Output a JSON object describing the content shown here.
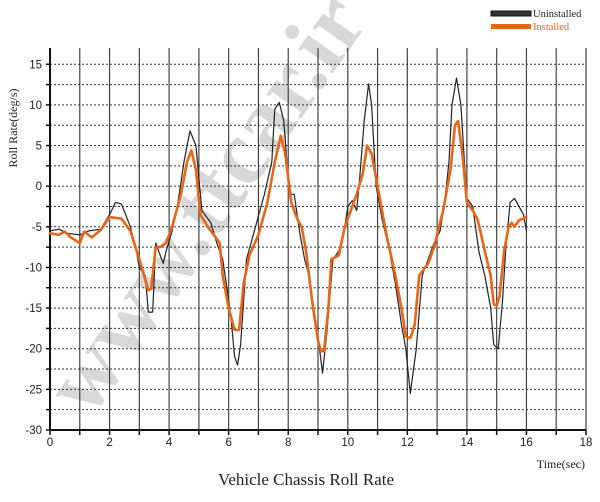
{
  "chart_data": {
    "type": "line",
    "title": "Vehicle Chassis Roll Rate",
    "xlabel": "Time(sec)",
    "ylabel": "Roll Rate(deg/s)",
    "xlim": [
      0,
      18
    ],
    "ylim": [
      -30,
      17
    ],
    "xticks": [
      0,
      2,
      4,
      6,
      8,
      10,
      12,
      14,
      16,
      18
    ],
    "yticks": [
      15,
      10,
      5,
      0,
      -5,
      -10,
      -15,
      -20,
      -25,
      -30
    ],
    "grid": {
      "vertical": "solid every 1 sec",
      "horizontal": "dotted every 2.5"
    },
    "legend_position": "top-right",
    "series": [
      {
        "name": "Uninstalled",
        "color": "#222222",
        "x": [
          0,
          0.3,
          0.6,
          1.0,
          1.3,
          1.7,
          2.0,
          2.2,
          2.4,
          2.7,
          2.9,
          3.0,
          3.2,
          3.3,
          3.45,
          3.55,
          3.7,
          3.8,
          3.9,
          4.1,
          4.3,
          4.5,
          4.7,
          4.9,
          5.1,
          5.4,
          5.6,
          5.8,
          6.0,
          6.1,
          6.2,
          6.3,
          6.4,
          6.6,
          6.9,
          7.2,
          7.45,
          7.55,
          7.7,
          7.85,
          8.0,
          8.1,
          8.2,
          8.4,
          8.55,
          8.7,
          8.9,
          9.05,
          9.15,
          9.3,
          9.5,
          9.7,
          9.9,
          10.0,
          10.15,
          10.3,
          10.4,
          10.55,
          10.7,
          10.8,
          10.95,
          11.15,
          11.4,
          11.6,
          11.8,
          11.95,
          12.1,
          12.3,
          12.5,
          12.7,
          12.9,
          13.1,
          13.25,
          13.4,
          13.5,
          13.65,
          13.8,
          13.9,
          14.0,
          14.2,
          14.4,
          14.6,
          14.8,
          14.9,
          15.05,
          15.2,
          15.3,
          15.45,
          15.6,
          15.9,
          16.0
        ],
        "y": [
          -5.5,
          -5.3,
          -5.8,
          -6.0,
          -5.5,
          -5.3,
          -3.5,
          -2,
          -2.2,
          -5,
          -8,
          -10,
          -11,
          -15.5,
          -15.5,
          -7,
          -8.5,
          -9.5,
          -8,
          -5.5,
          -2,
          3,
          6.8,
          5,
          -3,
          -4.5,
          -7,
          -9,
          -14,
          -17,
          -21,
          -22,
          -19.5,
          -9,
          -5,
          -1,
          3,
          9.5,
          10.3,
          8,
          1,
          -1,
          -1,
          -6,
          -9,
          -11,
          -17,
          -20,
          -23,
          -18,
          -9,
          -8,
          -5,
          -2.5,
          -1.8,
          -3,
          1,
          8,
          12.6,
          10,
          0,
          -4,
          -8,
          -12,
          -17,
          -20,
          -25.5,
          -20,
          -11,
          -9,
          -7,
          -5.5,
          -2,
          3,
          10,
          13.3,
          10,
          4,
          -1.5,
          -2.5,
          -8,
          -11,
          -15,
          -19.5,
          -20,
          -14,
          -8,
          -2,
          -1.5,
          -3.5,
          -5.5
        ]
      },
      {
        "name": "Installed",
        "color": "#e8651a",
        "x": [
          0,
          0.3,
          0.5,
          0.7,
          1.0,
          1.15,
          1.4,
          1.7,
          2.0,
          2.4,
          2.7,
          3.0,
          3.2,
          3.3,
          3.4,
          3.55,
          3.7,
          3.9,
          4.1,
          4.4,
          4.6,
          4.75,
          4.9,
          5.05,
          5.3,
          5.5,
          5.7,
          5.8,
          6.0,
          6.2,
          6.35,
          6.5,
          6.7,
          7.0,
          7.3,
          7.55,
          7.75,
          7.9,
          8.1,
          8.3,
          8.45,
          8.6,
          8.8,
          9.0,
          9.1,
          9.2,
          9.35,
          9.45,
          9.7,
          9.9,
          10.1,
          10.3,
          10.5,
          10.65,
          10.8,
          10.95,
          11.1,
          11.3,
          11.6,
          11.8,
          11.95,
          12.1,
          12.25,
          12.4,
          12.7,
          12.9,
          13.2,
          13.45,
          13.6,
          13.7,
          13.85,
          14.0,
          14.2,
          14.35,
          14.45,
          14.6,
          14.8,
          14.9,
          15.0,
          15.1,
          15.25,
          15.4,
          15.5,
          15.6,
          15.75,
          16.0
        ],
        "y": [
          -5.8,
          -6,
          -5.6,
          -6.3,
          -7,
          -5.6,
          -6.3,
          -5.4,
          -3.8,
          -4,
          -5.5,
          -9,
          -11.5,
          -12.8,
          -12.6,
          -7.5,
          -7.5,
          -7,
          -5,
          -1,
          3,
          4.4,
          2,
          -3.5,
          -5,
          -6,
          -7,
          -11,
          -15,
          -17.7,
          -17.7,
          -12,
          -8.5,
          -6,
          -2,
          3,
          6.2,
          4,
          -2,
          -4,
          -5,
          -8,
          -14,
          -19,
          -20.3,
          -20.3,
          -15,
          -9,
          -8.5,
          -5,
          -3,
          -1,
          1.5,
          5,
          4,
          1,
          -2,
          -6,
          -11,
          -15,
          -18.5,
          -18.7,
          -17,
          -11,
          -9.5,
          -7.5,
          -3,
          2,
          7.5,
          8,
          4,
          -2,
          -3,
          -4,
          -5.5,
          -8,
          -11,
          -14.5,
          -14.7,
          -13.5,
          -8,
          -5,
          -4.5,
          -5,
          -4.2,
          -3.8
        ]
      }
    ]
  },
  "watermark": "www.ttcar.ir"
}
